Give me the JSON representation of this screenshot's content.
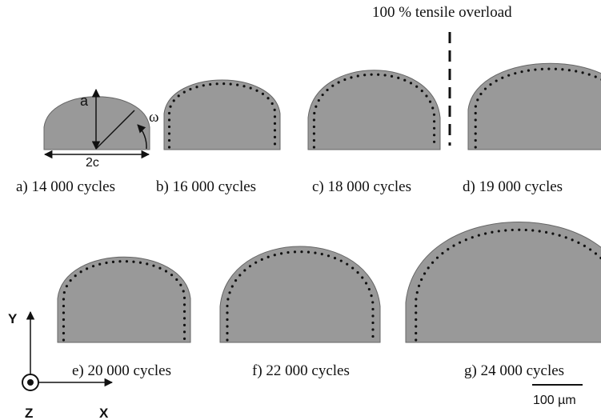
{
  "overload_label": "100 % tensile overload",
  "panels": [
    {
      "label": "a) 14 000 cycles"
    },
    {
      "label": "b) 16 000 cycles"
    },
    {
      "label": "c) 18 000 cycles"
    },
    {
      "label": "d) 19 000 cycles"
    },
    {
      "label": "e) 20 000 cycles"
    },
    {
      "label": "f) 22 000 cycles"
    },
    {
      "label": "g) 24 000 cycles"
    }
  ],
  "dimensions": {
    "depth": "a",
    "width": "2c",
    "angle": "ω"
  },
  "axes": {
    "y": "Y",
    "x": "X",
    "z": "Z"
  },
  "scale_bar": "100 µm"
}
